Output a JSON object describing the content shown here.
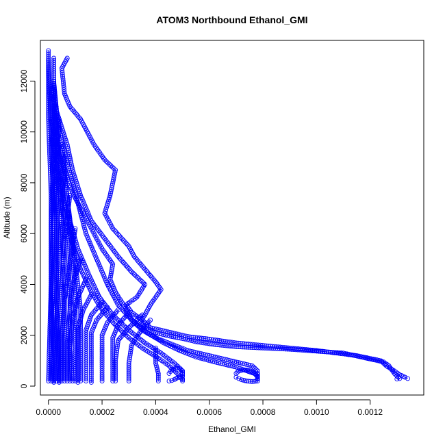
{
  "chart_data": {
    "type": "scatter",
    "title": "ATOM3 Northbound Ethanol_GMI",
    "xlabel": "Ethanol_GMI",
    "ylabel": "Altitude (m)",
    "xlim": [
      -3e-05,
      0.0014
    ],
    "ylim": [
      -350,
      13600
    ],
    "x_ticks": [
      0,
      0.0002,
      0.0004,
      0.0006,
      0.0008,
      0.001,
      0.0012
    ],
    "x_tick_labels": [
      "0.0000",
      "0.0002",
      "0.0004",
      "0.0006",
      "0.0008",
      "0.0010",
      "0.0012"
    ],
    "y_ticks": [
      0,
      2000,
      4000,
      6000,
      8000,
      10000,
      12000
    ],
    "y_tick_labels": [
      "0",
      "2000",
      "4000",
      "6000",
      "8000",
      "10000",
      "12000"
    ],
    "grid": false,
    "marker": "open-circle",
    "color": "#0000ff",
    "series": [
      {
        "x": [
          7e-05,
          5e-05,
          6e-05,
          8e-05,
          0.00012,
          0.00017,
          0.00021,
          0.00025,
          0.00023,
          0.00021,
          0.00024,
          0.0003,
          0.00032,
          0.00036,
          0.0004,
          0.00042,
          0.00038,
          0.00036,
          0.00034,
          0.00036,
          0.0004,
          0.00046,
          0.00051,
          0.00055,
          0.00061,
          0.0007,
          0.0009,
          0.0011,
          0.00125,
          0.00127,
          0.00128,
          0.00129,
          0.0013,
          0.00131,
          0.0013
        ],
        "y": [
          12900,
          12500,
          11500,
          11000,
          10500,
          9500,
          8900,
          8500,
          7500,
          6800,
          6200,
          5500,
          5100,
          4600,
          4100,
          3800,
          3200,
          2800,
          2500,
          2300,
          2100,
          1950,
          1850,
          1750,
          1650,
          1550,
          1450,
          1300,
          950,
          800,
          650,
          500,
          400,
          300,
          280
        ]
      },
      {
        "x": [
          1e-05,
          4e-05,
          7e-05,
          9e-05,
          0.00012,
          0.00016,
          0.00021,
          0.00026,
          0.00031,
          0.00036,
          0.00033,
          0.00029,
          0.00031,
          0.00035,
          0.00038,
          0.00046,
          0.00052,
          0.0006,
          0.0007,
          0.00085,
          0.001,
          0.00115,
          0.00124,
          0.00126,
          0.00129,
          0.00131,
          0.00133,
          0.00134
        ],
        "y": [
          11500,
          10500,
          9500,
          8500,
          7500,
          6500,
          5800,
          5100,
          4500,
          4000,
          3500,
          3200,
          2900,
          2600,
          2300,
          2100,
          1950,
          1850,
          1700,
          1550,
          1400,
          1200,
          1000,
          800,
          600,
          450,
          350,
          300
        ]
      },
      {
        "x": [
          1e-05,
          3e-05,
          6e-05,
          9e-05,
          0.00013,
          0.00017,
          0.0002,
          0.00024,
          0.00023,
          0.00025,
          0.00028,
          0.0003,
          0.00032,
          0.00035,
          0.0004,
          0.00046,
          0.00052,
          0.0006,
          0.00068,
          0.00076,
          0.00078,
          0.00078
        ],
        "y": [
          10500,
          9500,
          8500,
          7600,
          6800,
          6000,
          5400,
          4800,
          4200,
          3700,
          3200,
          2800,
          2500,
          2200,
          1900,
          1650,
          1400,
          1200,
          1000,
          800,
          600,
          400
        ]
      },
      {
        "x": [
          2e-05,
          3e-05,
          5e-05,
          8e-05,
          0.00011,
          0.00014,
          0.00018,
          0.00022,
          0.00026,
          0.00031,
          0.00037,
          0.00043,
          0.00049,
          0.00055,
          0.00062,
          0.0007,
          0.00074,
          0.00078,
          0.00078
        ],
        "y": [
          12000,
          10800,
          9600,
          8400,
          7200,
          6000,
          5000,
          4000,
          3200,
          2600,
          2100,
          1700,
          1400,
          1150,
          950,
          750,
          600,
          450,
          300
        ]
      },
      {
        "x": [
          1e-05,
          3e-05,
          5e-05,
          8e-05,
          0.00011,
          0.00015,
          0.00019,
          0.00024,
          0.0003,
          0.00036,
          0.00042,
          0.00047,
          0.0005,
          0.0005,
          0.0005
        ],
        "y": [
          9800,
          8700,
          7600,
          6500,
          5400,
          4400,
          3500,
          2800,
          2200,
          1700,
          1300,
          900,
          600,
          400,
          200
        ]
      },
      {
        "x": [
          2e-05,
          4e-05,
          6e-05,
          9e-05,
          0.00012,
          0.00016,
          0.0002,
          0.00025,
          0.0003,
          0.00035,
          0.00041,
          0.00045,
          0.00048,
          0.0005
        ],
        "y": [
          8800,
          7700,
          6600,
          5600,
          4600,
          3700,
          3000,
          2400,
          1900,
          1500,
          1100,
          800,
          500,
          250
        ]
      },
      {
        "x": [
          0.0007,
          0.00071,
          0.00072,
          0.00074,
          0.00076,
          0.00078,
          0.00078,
          0.00077,
          0.00075,
          0.00073,
          0.00071,
          0.0007
        ],
        "y": [
          350,
          300,
          250,
          200,
          180,
          200,
          350,
          500,
          620,
          640,
          600,
          500
        ]
      },
      {
        "x": [
          0.00045,
          0.00046,
          0.00047,
          0.00048,
          0.0005,
          0.0005,
          0.00049,
          0.00048,
          0.00046,
          0.00045
        ],
        "y": [
          200,
          220,
          260,
          320,
          400,
          550,
          700,
          720,
          650,
          500
        ]
      },
      {
        "x": [
          0.0004,
          0.0004,
          0.00041,
          0.00041
        ],
        "y": [
          1500,
          900,
          500,
          200
        ]
      },
      {
        "x": [
          0.00038,
          0.00034,
          0.00031,
          0.0003,
          0.0003
        ],
        "y": [
          2600,
          2100,
          1600,
          900,
          200
        ]
      },
      {
        "x": [
          0.00035,
          0.0003,
          0.00026,
          0.00025,
          0.00025
        ],
        "y": [
          2800,
          2300,
          1800,
          1000,
          200
        ]
      },
      {
        "x": [
          0.0003,
          0.00026,
          0.00024,
          0.00024,
          0.00024
        ],
        "y": [
          2900,
          2400,
          1900,
          1100,
          200
        ]
      },
      {
        "x": [
          0.00026,
          0.00022,
          0.0002,
          0.0002,
          0.0002
        ],
        "y": [
          3000,
          2500,
          2000,
          1100,
          200
        ]
      },
      {
        "x": [
          0.00022,
          0.00018,
          0.00016,
          0.00016,
          0.00016
        ],
        "y": [
          3100,
          2600,
          2100,
          1100,
          150
        ]
      },
      {
        "x": [
          0.0002,
          0.00016,
          0.00014,
          0.00014,
          0.00014
        ],
        "y": [
          3300,
          2800,
          2200,
          1200,
          200
        ]
      },
      {
        "x": [
          0.00016,
          0.00013,
          0.00011,
          0.00011,
          0.00011
        ],
        "y": [
          3600,
          3000,
          2300,
          1200,
          150
        ]
      },
      {
        "x": [
          0.00014,
          0.00011,
          9e-05,
          8e-05,
          9e-05
        ],
        "y": [
          4200,
          3500,
          2600,
          1500,
          200
        ]
      },
      {
        "x": [
          0.00012,
          9e-05,
          8e-05,
          7e-05,
          7e-05
        ],
        "y": [
          5000,
          4000,
          3000,
          1700,
          200
        ]
      },
      {
        "x": [
          0.0001,
          8e-05,
          6e-05,
          5e-05,
          5e-05
        ],
        "y": [
          6200,
          4800,
          3400,
          1900,
          200
        ]
      },
      {
        "x": [
          8e-05,
          6e-05,
          5e-05,
          4e-05,
          4e-05
        ],
        "y": [
          7500,
          5800,
          4000,
          2200,
          200
        ]
      },
      {
        "x": [
          6e-05,
          5e-05,
          4e-05,
          3e-05,
          3e-05
        ],
        "y": [
          9000,
          7000,
          4800,
          2600,
          200
        ]
      },
      {
        "x": [
          4e-05,
          3e-05,
          3e-05,
          2e-05,
          2e-05
        ],
        "y": [
          10500,
          8200,
          5600,
          3000,
          200
        ]
      },
      {
        "x": [
          2e-05,
          2e-05,
          1e-05,
          1e-05,
          1e-05
        ],
        "y": [
          12000,
          9500,
          6500,
          3500,
          200
        ]
      },
      {
        "x": [
          0.0,
          0.0,
          1e-05,
          1e-05,
          0.0
        ],
        "y": [
          13200,
          10500,
          7500,
          4000,
          200
        ]
      },
      {
        "x": [
          0.0,
          1e-05,
          2e-05,
          1e-05,
          2e-05
        ],
        "y": [
          12800,
          10000,
          7000,
          3800,
          150
        ]
      },
      {
        "x": [
          1e-05,
          2e-05,
          3e-05,
          3e-05,
          4e-05
        ],
        "y": [
          11800,
          9200,
          6600,
          3700,
          150
        ]
      },
      {
        "x": [
          2e-05,
          4e-05,
          5e-05,
          6e-05,
          6e-05
        ],
        "y": [
          11000,
          8600,
          6200,
          3600,
          200
        ]
      },
      {
        "x": [
          3e-05,
          5e-05,
          7e-05,
          8e-05,
          8e-05
        ],
        "y": [
          10200,
          8000,
          5800,
          3400,
          200
        ]
      },
      {
        "x": [
          5e-05,
          7e-05,
          9e-05,
          0.0001,
          0.0001
        ],
        "y": [
          9500,
          7400,
          5400,
          3200,
          200
        ]
      },
      {
        "x": [
          6e-05,
          8e-05,
          0.0001,
          0.00012,
          0.00012
        ],
        "y": [
          8200,
          6600,
          4900,
          3000,
          200
        ]
      },
      {
        "x": [
          2e-05,
          2e-05,
          3e-05,
          3e-05,
          3e-05
        ],
        "y": [
          12900,
          11900,
          10900,
          9900,
          8900
        ]
      }
    ]
  }
}
